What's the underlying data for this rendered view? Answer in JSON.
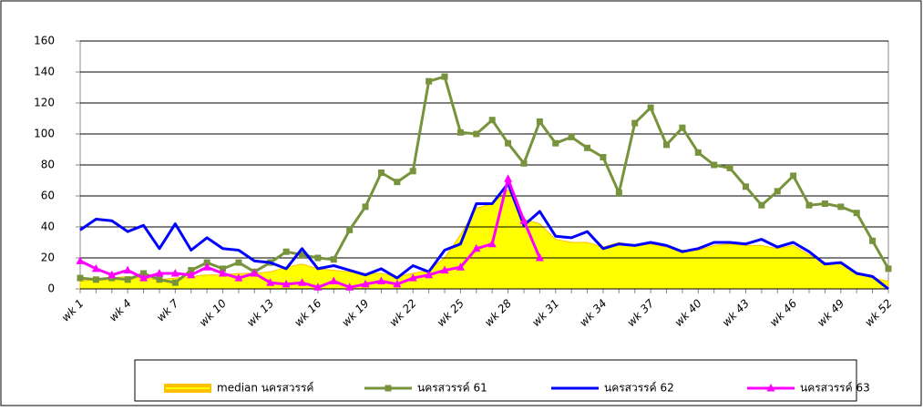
{
  "chart_data": {
    "type": "line",
    "categories": [
      "wk 1",
      null,
      null,
      "wk 4",
      null,
      null,
      "wk 7",
      null,
      null,
      "wk 10",
      null,
      null,
      "wk 13",
      null,
      null,
      "wk 16",
      null,
      null,
      "wk 19",
      null,
      null,
      "wk 22",
      null,
      null,
      "wk 25",
      null,
      null,
      "wk 28",
      null,
      null,
      "wk 31",
      null,
      null,
      "wk 34",
      null,
      null,
      "wk 37",
      null,
      null,
      "wk 40",
      null,
      null,
      "wk 43",
      null,
      null,
      "wk 46",
      null,
      null,
      "wk 49",
      null,
      null,
      "wk 52"
    ],
    "series": [
      {
        "name": "median นครสวรรค์",
        "type": "area",
        "color": "#ffff00",
        "edge_color": "#ffc000",
        "values": [
          5,
          6,
          7,
          8,
          7,
          6,
          7,
          8,
          9,
          9,
          10,
          10,
          11,
          14,
          16,
          13,
          12,
          11,
          10,
          10,
          8,
          10,
          12,
          20,
          35,
          52,
          55,
          64,
          45,
          42,
          32,
          30,
          30,
          27,
          30,
          28,
          29,
          27,
          25,
          25,
          28,
          29,
          28,
          28,
          26,
          28,
          22,
          17,
          16,
          10,
          7,
          5
        ]
      },
      {
        "name": "นครสวรรค์ 61",
        "type": "line",
        "color": "#77933c",
        "marker": "square",
        "values": [
          7,
          6,
          7,
          6,
          10,
          6,
          4,
          12,
          17,
          13,
          17,
          11,
          17,
          24,
          22,
          20,
          19,
          38,
          53,
          75,
          69,
          76,
          134,
          137,
          101,
          100,
          109,
          94,
          81,
          108,
          94,
          98,
          91,
          85,
          62,
          107,
          117,
          93,
          104,
          88,
          80,
          78,
          66,
          54,
          63,
          73,
          54,
          55,
          53,
          49,
          31,
          13
        ]
      },
      {
        "name": "นครสวรรค์ 62",
        "type": "line",
        "color": "#0000ff",
        "marker": "none",
        "values": [
          38,
          45,
          44,
          37,
          41,
          26,
          42,
          25,
          33,
          26,
          25,
          18,
          17,
          13,
          26,
          13,
          15,
          12,
          9,
          13,
          7,
          15,
          11,
          25,
          29,
          55,
          55,
          68,
          41,
          50,
          34,
          33,
          37,
          26,
          29,
          28,
          30,
          28,
          24,
          26,
          30,
          30,
          29,
          32,
          27,
          30,
          24,
          16,
          17,
          10,
          8,
          0
        ]
      },
      {
        "name": "นครสวรรค์ 63",
        "type": "line",
        "color": "#ff00ff",
        "marker": "triangle",
        "values": [
          18,
          13,
          9,
          12,
          7,
          10,
          10,
          9,
          14,
          10,
          7,
          10,
          4,
          3,
          4,
          1,
          5,
          1,
          3,
          5,
          3,
          7,
          9,
          12,
          14,
          26,
          29,
          71,
          44,
          20,
          null,
          null,
          null,
          null,
          null,
          null,
          null,
          null,
          null,
          null,
          null,
          null,
          null,
          null,
          null,
          null,
          null,
          null,
          null,
          null,
          null,
          null
        ]
      }
    ],
    "ylim": [
      0,
      160
    ],
    "yticks": [
      0,
      20,
      40,
      60,
      80,
      100,
      120,
      140,
      160
    ],
    "grid": true,
    "legend": "bottom"
  }
}
